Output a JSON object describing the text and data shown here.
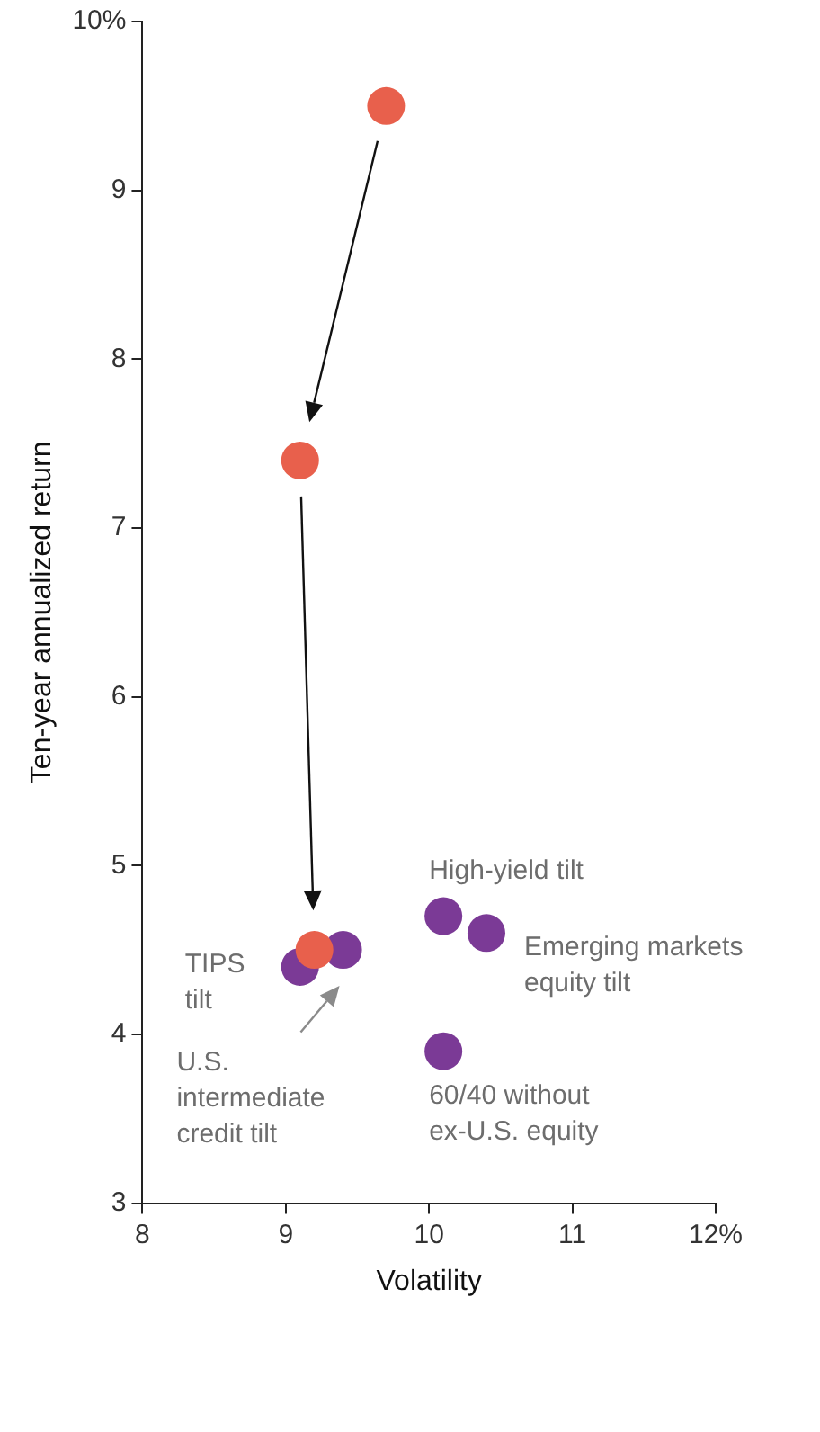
{
  "chart_data": {
    "type": "scatter",
    "xlabel": "Volatility",
    "ylabel": "Ten-year annualized return",
    "series": [
      {
        "color": "#e8604c",
        "x": [
          9.7,
          9.1,
          9.2
        ],
        "values": [
          9.5,
          7.4,
          4.5
        ]
      },
      {
        "color": "#7b3a96",
        "x": [
          9.1,
          9.4,
          10.1,
          10.4,
          10.1
        ],
        "values": [
          4.4,
          4.5,
          4.7,
          4.6,
          3.9
        ]
      }
    ],
    "xlim": [
      8,
      12
    ],
    "xticks": [
      8,
      9,
      10,
      11,
      {
        "value": 12,
        "label": "12%"
      }
    ],
    "ylim": [
      3,
      10
    ],
    "yticks": [
      3,
      4,
      5,
      6,
      7,
      8,
      9,
      {
        "value": 10,
        "label": "10%"
      }
    ],
    "grid": false,
    "legend": false,
    "marker": "circle",
    "annotations": [
      {
        "text": "High-yield tilt",
        "x": 10.1,
        "y": 4.7
      },
      {
        "text": "Emerging markets\nequity tilt",
        "x": 10.4,
        "y": 4.6
      },
      {
        "text": "60/40 without\nex-U.S. equity",
        "x": 10.1,
        "y": 3.9
      },
      {
        "text": "TIPS\ntilt",
        "x": 9.1,
        "y": 4.4
      },
      "U.S.\nintermediate\ncredit tilt"
    ]
  }
}
